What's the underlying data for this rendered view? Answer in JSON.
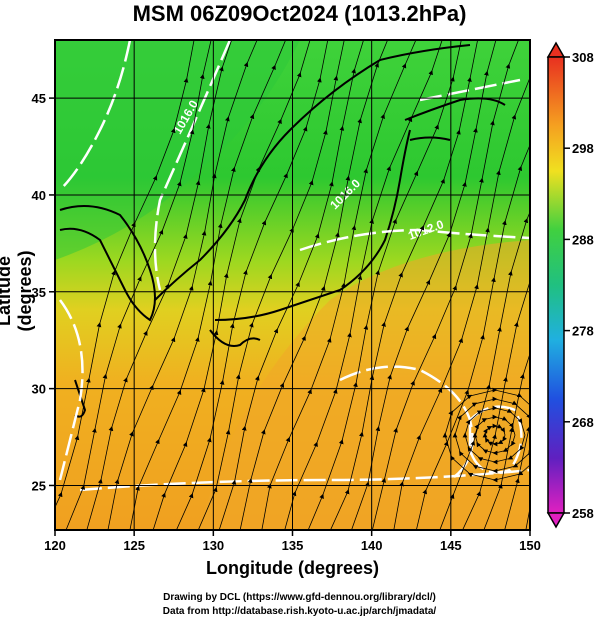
{
  "title": "MSM 06Z09Oct2024 (1013.2hPa)",
  "x_axis": {
    "label": "Longitude (degrees)",
    "ticks": [
      "120",
      "125",
      "130",
      "135",
      "140",
      "145",
      "150"
    ]
  },
  "y_axis": {
    "label": "Latitude  (degrees)",
    "ticks": [
      "25",
      "30",
      "35",
      "40",
      "45"
    ]
  },
  "colorbar": {
    "ticks": [
      "308",
      "298",
      "288",
      "278",
      "268",
      "258"
    ]
  },
  "contour_labels": [
    "1016.0",
    "1016.0",
    "1012.0"
  ],
  "credits": {
    "line1": "Drawing by DCL (https://www.gfd-dennou.org/library/dcl/)",
    "line2": "Data from http://database.rish.kyoto-u.ac.jp/arch/jmadata/"
  },
  "colors": {
    "green": "#22cc22",
    "yellow": "#e8d020",
    "orange": "#f0a020",
    "land": "#000000",
    "contour": "#ffffff"
  }
}
